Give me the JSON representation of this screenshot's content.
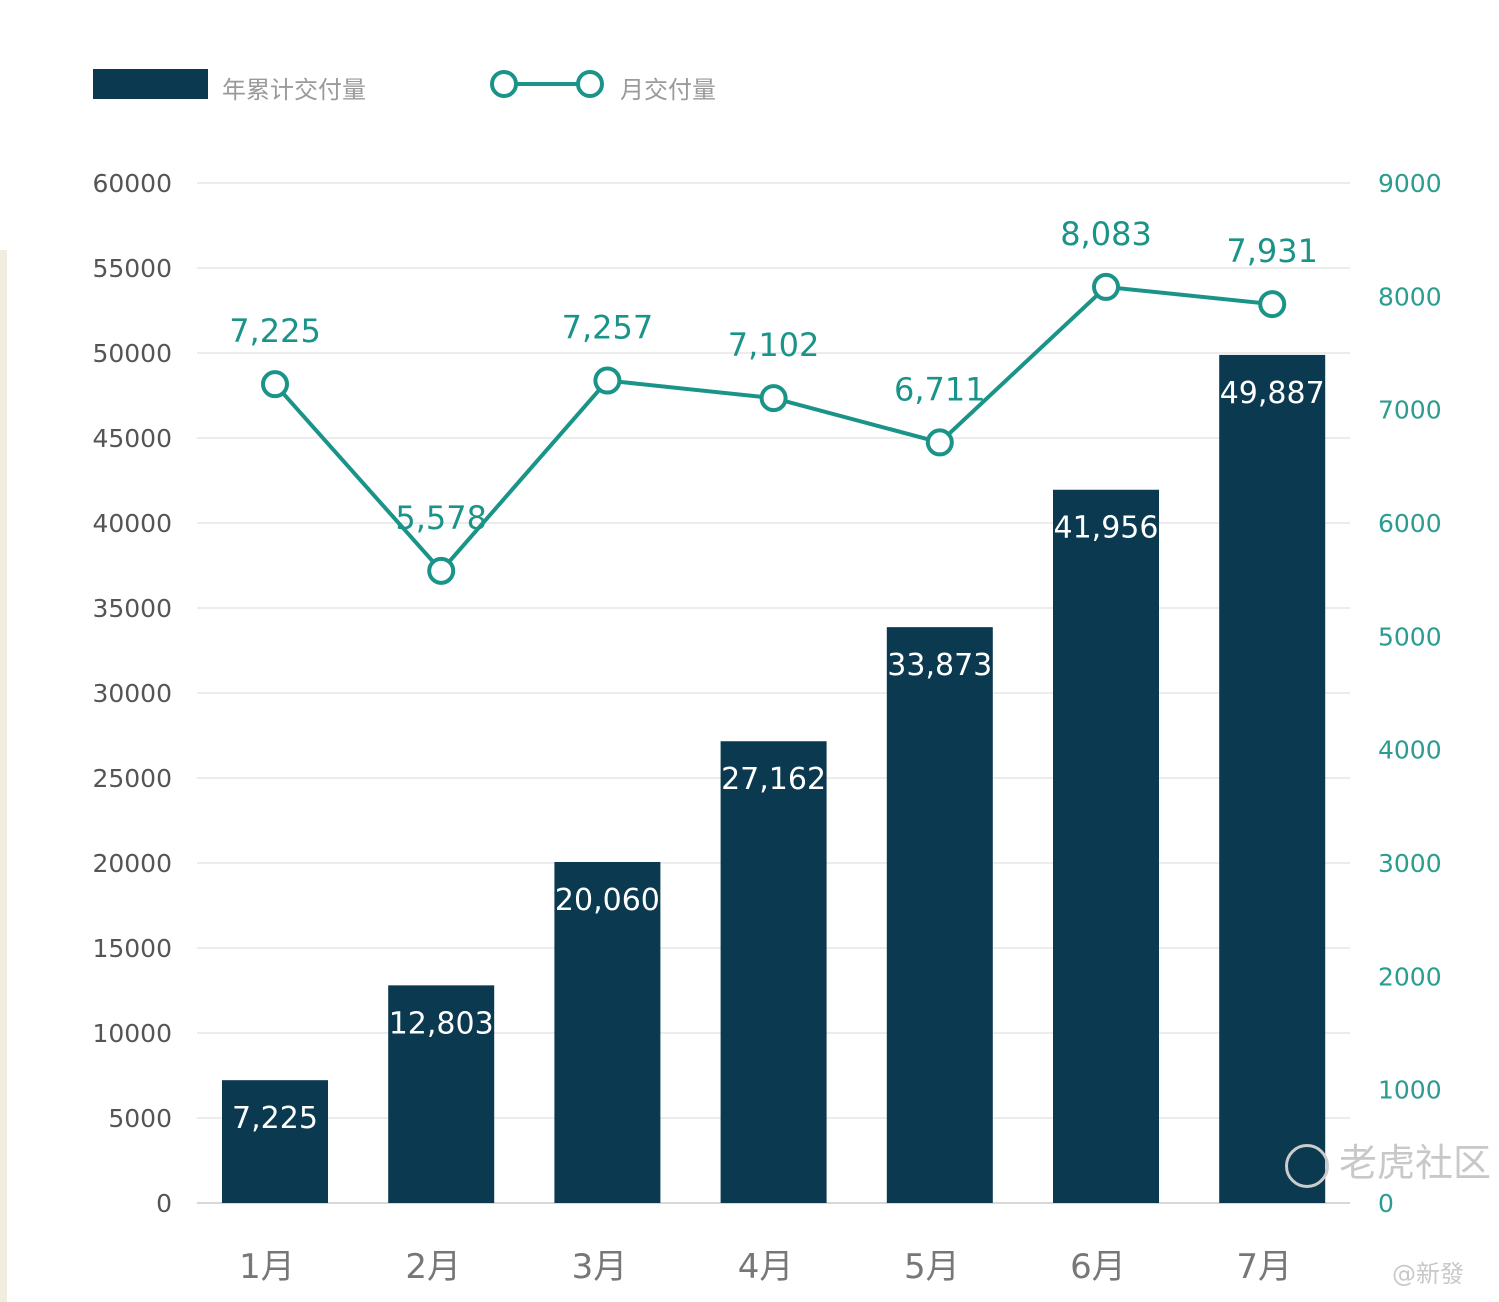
{
  "chart_data": {
    "type": "bar+line",
    "categories": [
      "1月",
      "2月",
      "3月",
      "4月",
      "5月",
      "6月",
      "7月"
    ],
    "series": [
      {
        "name": "年累计交付量",
        "type": "bar",
        "axis": "left",
        "values": [
          7225,
          12803,
          20060,
          27162,
          33873,
          41956,
          49887
        ],
        "labels": [
          "7,225",
          "12,803",
          "20,060",
          "27,162",
          "33,873",
          "41,956",
          "49,887"
        ],
        "color": "#0b3a50"
      },
      {
        "name": "月交付量",
        "type": "line",
        "axis": "right",
        "values": [
          7225,
          5578,
          7257,
          7102,
          6711,
          8083,
          7931
        ],
        "labels": [
          "7,225",
          "5,578",
          "7,257",
          "7,102",
          "6,711",
          "8,083",
          "7,931"
        ],
        "color": "#1a9488"
      }
    ],
    "left_axis": {
      "ylim": [
        0,
        60000
      ],
      "ticks": [
        "0",
        "5000",
        "10000",
        "15000",
        "20000",
        "25000",
        "30000",
        "35000",
        "40000",
        "45000",
        "50000",
        "55000",
        "60000"
      ]
    },
    "right_axis": {
      "ylim": [
        0,
        9000
      ],
      "ticks": [
        "0",
        "1000",
        "2000",
        "3000",
        "4000",
        "5000",
        "6000",
        "7000",
        "8000",
        "9000"
      ]
    },
    "grid": true,
    "legend_position": "top-left"
  },
  "watermark": {
    "brand": "老虎社区",
    "handle": "@新發"
  }
}
